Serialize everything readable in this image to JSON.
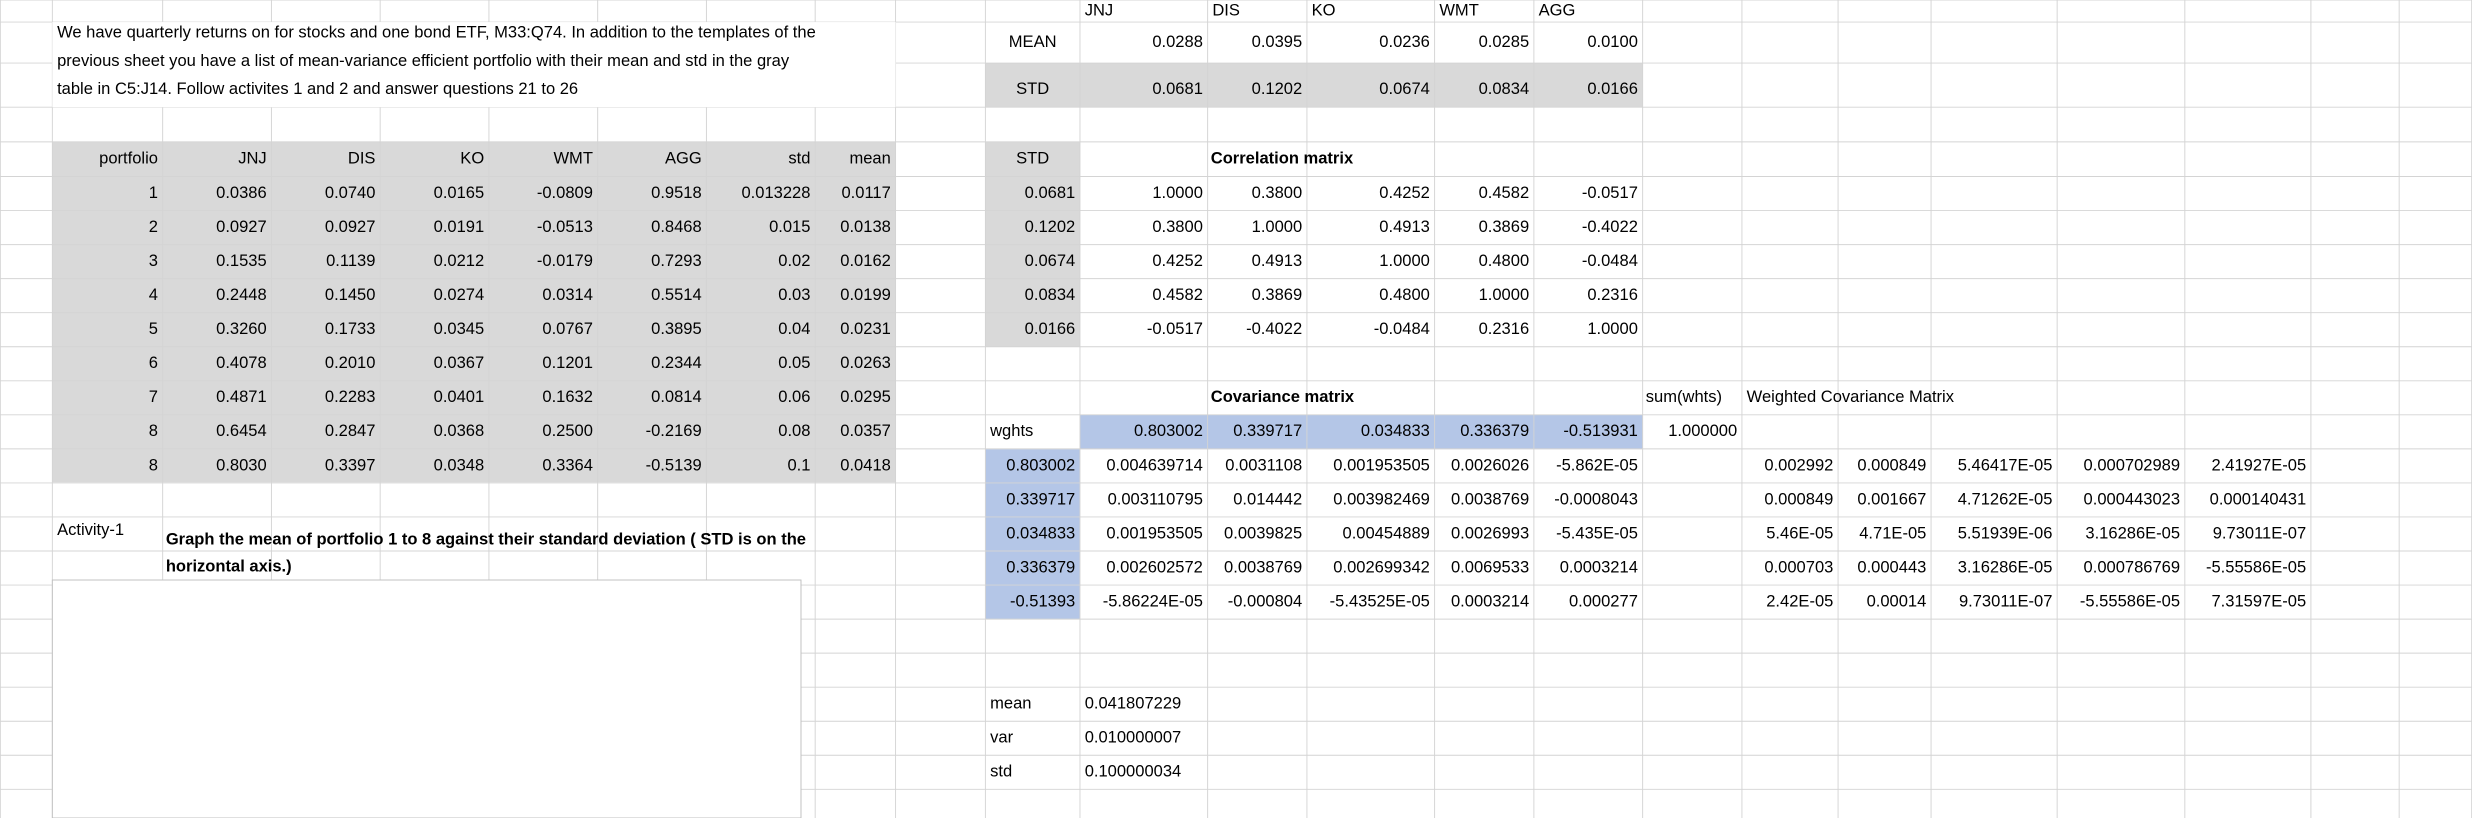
{
  "intro": [
    "We have quarterly returns on for stocks and one bond ETF, M33:Q74.  In addition to the templates of the",
    "previous sheet you have a list of mean-variance efficient portfolio with their mean and std in the gray",
    "table in C5:J14.  Follow activites 1 and 2 and answer questions 21 to 26"
  ],
  "summary": {
    "tickers": [
      "JNJ",
      "DIS",
      "KO",
      "WMT",
      "AGG"
    ],
    "rows": [
      {
        "label": "MEAN",
        "values": [
          "0.0288",
          "0.0395",
          "0.0236",
          "0.0285",
          "0.0100"
        ]
      },
      {
        "label": "STD",
        "values": [
          "0.0681",
          "0.1202",
          "0.0674",
          "0.0834",
          "0.0166"
        ]
      }
    ]
  },
  "portfolios": {
    "header": [
      "portfolio",
      "JNJ",
      "DIS",
      "KO",
      "WMT",
      "AGG",
      "std",
      "mean"
    ],
    "rows": [
      [
        "1",
        "0.0386",
        "0.0740",
        "0.0165",
        "-0.0809",
        "0.9518",
        "0.013228",
        "0.0117"
      ],
      [
        "2",
        "0.0927",
        "0.0927",
        "0.0191",
        "-0.0513",
        "0.8468",
        "0.015",
        "0.0138"
      ],
      [
        "3",
        "0.1535",
        "0.1139",
        "0.0212",
        "-0.0179",
        "0.7293",
        "0.02",
        "0.0162"
      ],
      [
        "4",
        "0.2448",
        "0.1450",
        "0.0274",
        "0.0314",
        "0.5514",
        "0.03",
        "0.0199"
      ],
      [
        "5",
        "0.3260",
        "0.1733",
        "0.0345",
        "0.0767",
        "0.3895",
        "0.04",
        "0.0231"
      ],
      [
        "6",
        "0.4078",
        "0.2010",
        "0.0367",
        "0.1201",
        "0.2344",
        "0.05",
        "0.0263"
      ],
      [
        "7",
        "0.4871",
        "0.2283",
        "0.0401",
        "0.1632",
        "0.0814",
        "0.06",
        "0.0295"
      ],
      [
        "8",
        "0.6454",
        "0.2847",
        "0.0368",
        "0.2500",
        "-0.2169",
        "0.08",
        "0.0357"
      ],
      [
        "8",
        "0.8030",
        "0.3397",
        "0.0348",
        "0.3364",
        "-0.5139",
        "0.1",
        "0.0418"
      ]
    ]
  },
  "correlation": {
    "std_label": "STD",
    "title": "Correlation matrix",
    "rows": [
      {
        "std": "0.0681",
        "values": [
          "1.0000",
          "0.3800",
          "0.4252",
          "0.4582",
          "-0.0517"
        ]
      },
      {
        "std": "0.1202",
        "values": [
          "0.3800",
          "1.0000",
          "0.4913",
          "0.3869",
          "-0.4022"
        ]
      },
      {
        "std": "0.0674",
        "values": [
          "0.4252",
          "0.4913",
          "1.0000",
          "0.4800",
          "-0.0484"
        ]
      },
      {
        "std": "0.0834",
        "values": [
          "0.4582",
          "0.3869",
          "0.4800",
          "1.0000",
          "0.2316"
        ]
      },
      {
        "std": "0.0166",
        "values": [
          "-0.0517",
          "-0.4022",
          "-0.0484",
          "0.2316",
          "1.0000"
        ]
      }
    ]
  },
  "covariance": {
    "title": "Covariance matrix",
    "sum_label": "sum(whts)",
    "weighted_title": "Weighted Covariance Matrix",
    "weights_label": "wghts",
    "weights": [
      "0.803002",
      "0.339717",
      "0.034833",
      "0.336379",
      "-0.513931"
    ],
    "sum": "1.000000",
    "rows": [
      {
        "weight": "0.803002",
        "values": [
          "0.004639714",
          "0.0031108",
          "0.001953505",
          "0.0026026",
          "-5.862E-05"
        ],
        "weighted": [
          "0.002992",
          "0.000849",
          "5.46417E-05",
          "0.000702989",
          "2.41927E-05"
        ]
      },
      {
        "weight": "0.339717",
        "values": [
          "0.003110795",
          "0.014442",
          "0.003982469",
          "0.0038769",
          "-0.0008043"
        ],
        "weighted": [
          "0.000849",
          "0.001667",
          "4.71262E-05",
          "0.000443023",
          "0.000140431"
        ]
      },
      {
        "weight": "0.034833",
        "values": [
          "0.001953505",
          "0.0039825",
          "0.00454889",
          "0.0026993",
          "-5.435E-05"
        ],
        "weighted": [
          "5.46E-05",
          "4.71E-05",
          "5.51939E-06",
          "3.16286E-05",
          "9.73011E-07"
        ]
      },
      {
        "weight": "0.336379",
        "values": [
          "0.002602572",
          "0.0038769",
          "0.002699342",
          "0.0069533",
          "0.0003214"
        ],
        "weighted": [
          "0.000703",
          "0.000443",
          "3.16286E-05",
          "0.000786769",
          "-5.55586E-05"
        ]
      },
      {
        "weight": "-0.51393",
        "values": [
          "-5.86224E-05",
          "-0.000804",
          "-5.43525E-05",
          "0.0003214",
          "0.000277"
        ],
        "weighted": [
          "2.42E-05",
          "0.00014",
          "9.73011E-07",
          "-5.55586E-05",
          "7.31597E-05"
        ]
      }
    ]
  },
  "activity": {
    "label": "Activity-1",
    "text": [
      "Graph the mean of portfolio 1 to 8 against their standard deviation ( STD is on the",
      "horizontal axis.)"
    ]
  },
  "results": [
    {
      "label": "mean",
      "value": "0.041807229"
    },
    {
      "label": "var",
      "value": "0.010000007"
    },
    {
      "label": "std",
      "value": "0.100000034"
    }
  ]
}
